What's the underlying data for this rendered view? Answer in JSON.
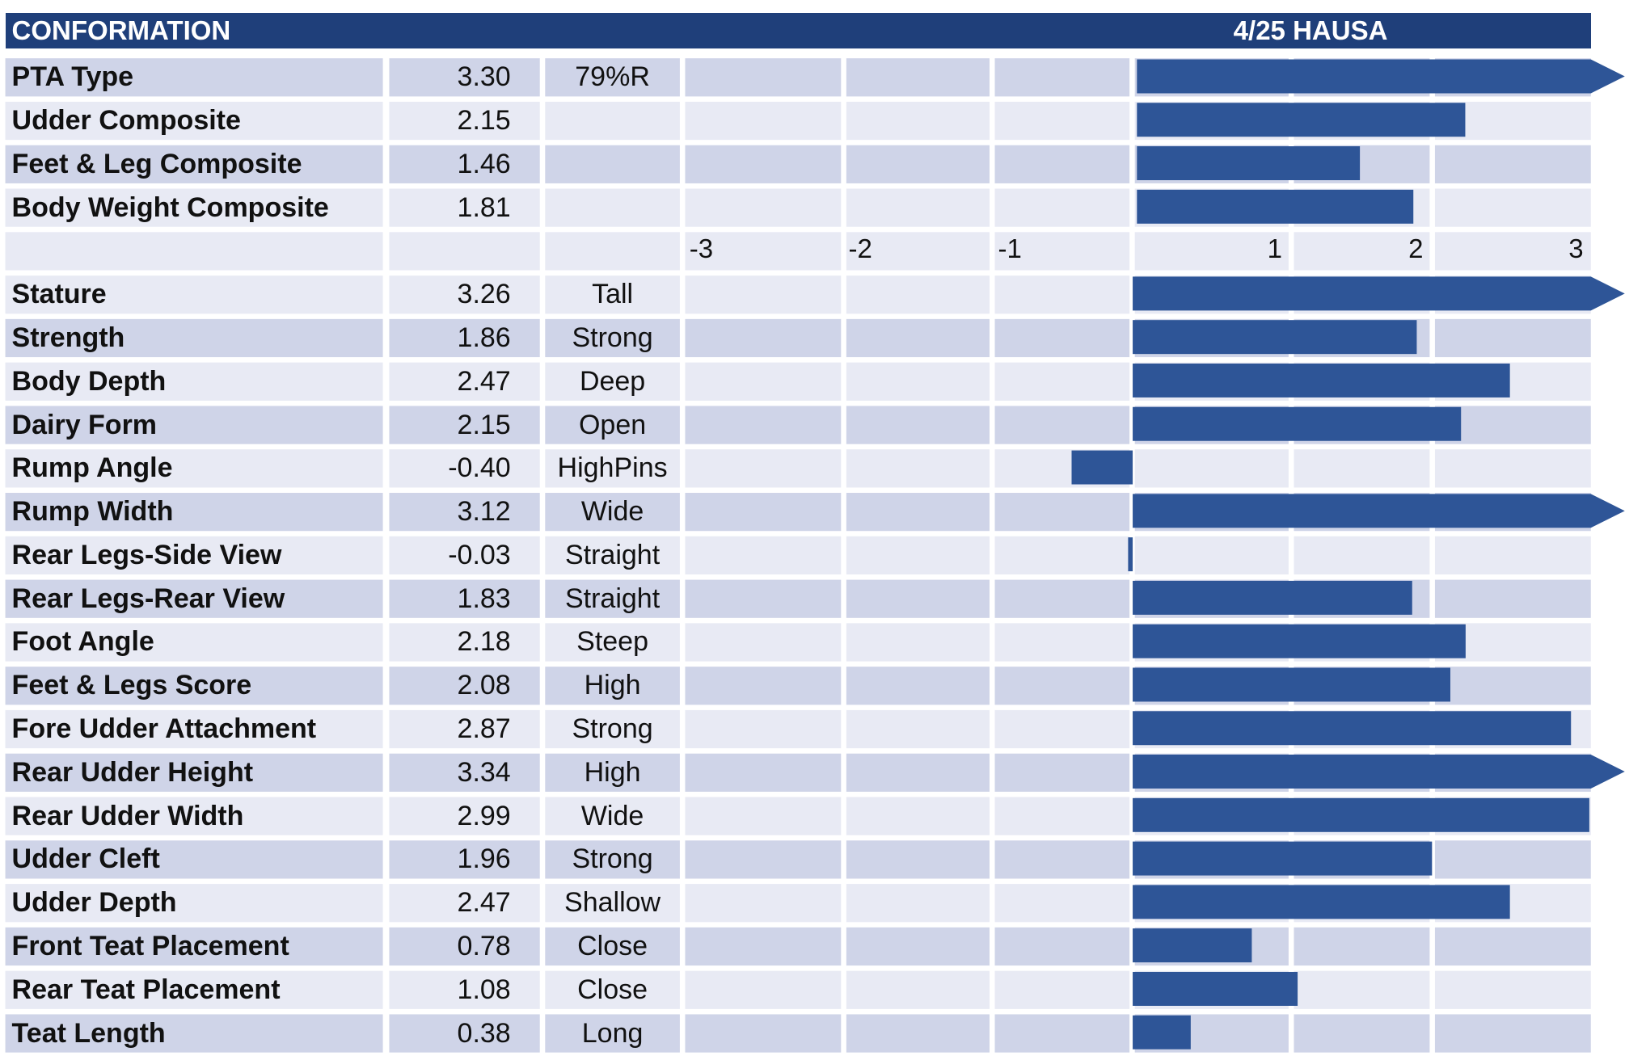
{
  "header": {
    "title": "CONFORMATION",
    "source": "4/25 HAUSA"
  },
  "colors": {
    "header_bg": "#1f3f7a",
    "bar": "#2e5597",
    "row_dark": "#cfd4e8",
    "row_light": "#e8eaf4"
  },
  "axis": {
    "ticks_negative": [
      "-3",
      "-2",
      "-1"
    ],
    "ticks_positive": [
      "1",
      "2",
      "3"
    ]
  },
  "chart_data": {
    "type": "bar",
    "orientation": "horizontal",
    "xlim": [
      -3,
      3
    ],
    "groups": [
      {
        "rows": [
          {
            "name": "PTA Type",
            "value": 3.3,
            "value_text": "3.30",
            "label": "79%R",
            "overflow": true
          },
          {
            "name": "Udder Composite",
            "value": 2.15,
            "value_text": "2.15",
            "label": "",
            "overflow": false
          },
          {
            "name": "Feet & Leg Composite",
            "value": 1.46,
            "value_text": "1.46",
            "label": "",
            "overflow": false
          },
          {
            "name": "Body Weight Composite",
            "value": 1.81,
            "value_text": "1.81",
            "label": "",
            "overflow": false
          }
        ]
      },
      {
        "rows": [
          {
            "name": "Stature",
            "value": 3.26,
            "value_text": "3.26",
            "label": "Tall",
            "overflow": true
          },
          {
            "name": "Strength",
            "value": 1.86,
            "value_text": "1.86",
            "label": "Strong",
            "overflow": false
          },
          {
            "name": "Body Depth",
            "value": 2.47,
            "value_text": "2.47",
            "label": "Deep",
            "overflow": false
          },
          {
            "name": "Dairy Form",
            "value": 2.15,
            "value_text": "2.15",
            "label": "Open",
            "overflow": false
          },
          {
            "name": "Rump Angle",
            "value": -0.4,
            "value_text": "-0.40",
            "label": "HighPins",
            "overflow": false
          },
          {
            "name": "Rump Width",
            "value": 3.12,
            "value_text": "3.12",
            "label": "Wide",
            "overflow": true
          },
          {
            "name": "Rear Legs-Side View",
            "value": -0.03,
            "value_text": "-0.03",
            "label": "Straight",
            "overflow": false
          },
          {
            "name": "Rear Legs-Rear View",
            "value": 1.83,
            "value_text": "1.83",
            "label": "Straight",
            "overflow": false
          },
          {
            "name": "Foot Angle",
            "value": 2.18,
            "value_text": "2.18",
            "label": "Steep",
            "overflow": false
          },
          {
            "name": "Feet & Legs Score",
            "value": 2.08,
            "value_text": "2.08",
            "label": "High",
            "overflow": false
          },
          {
            "name": "Fore Udder Attachment",
            "value": 2.87,
            "value_text": "2.87",
            "label": "Strong",
            "overflow": false
          },
          {
            "name": "Rear Udder Height",
            "value": 3.34,
            "value_text": "3.34",
            "label": "High",
            "overflow": true
          },
          {
            "name": "Rear Udder Width",
            "value": 2.99,
            "value_text": "2.99",
            "label": "Wide",
            "overflow": false
          },
          {
            "name": "Udder Cleft",
            "value": 1.96,
            "value_text": "1.96",
            "label": "Strong",
            "overflow": false
          },
          {
            "name": "Udder Depth",
            "value": 2.47,
            "value_text": "2.47",
            "label": "Shallow",
            "overflow": false
          },
          {
            "name": "Front Teat Placement",
            "value": 0.78,
            "value_text": "0.78",
            "label": "Close",
            "overflow": false
          },
          {
            "name": "Rear Teat Placement",
            "value": 1.08,
            "value_text": "1.08",
            "label": "Close",
            "overflow": false
          },
          {
            "name": "Teat Length",
            "value": 0.38,
            "value_text": "0.38",
            "label": "Long",
            "overflow": false
          }
        ]
      }
    ]
  }
}
